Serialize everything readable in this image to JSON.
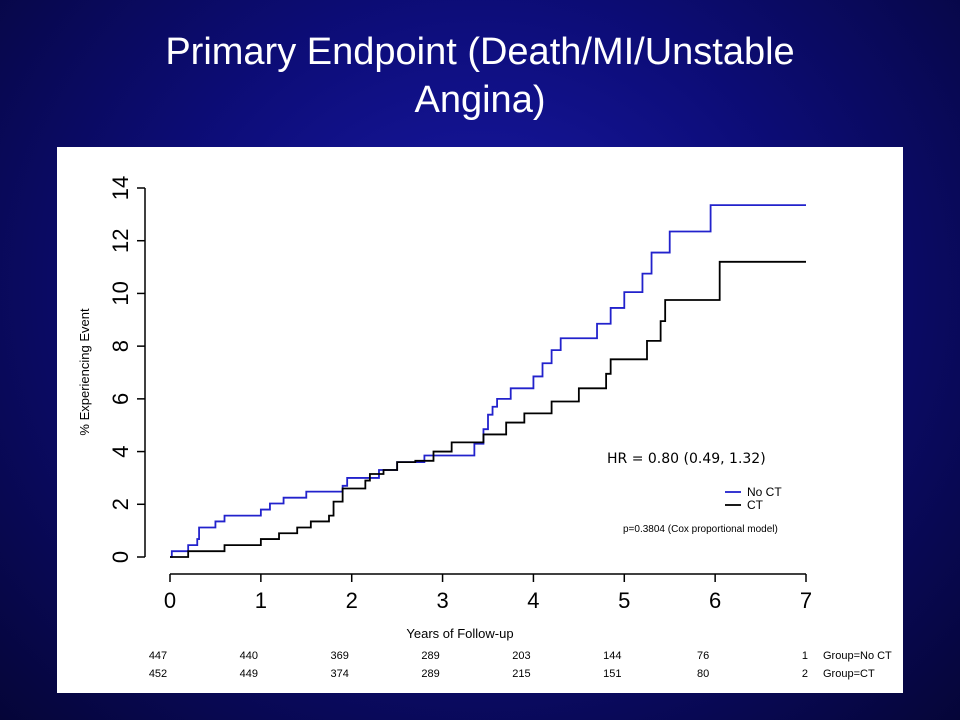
{
  "title_lines": [
    "Primary Endpoint (Death/MI/Unstable",
    "Angina)"
  ],
  "chart_data": {
    "type": "line",
    "step": true,
    "xlabel": "Years of Follow-up",
    "ylabel": "% Experiencing Event",
    "xlim": [
      0,
      7
    ],
    "ylim": [
      0,
      14
    ],
    "xticks": [
      0,
      1,
      2,
      3,
      4,
      5,
      6,
      7
    ],
    "yticks": [
      0,
      2,
      4,
      6,
      8,
      10,
      12,
      14
    ],
    "grid": false,
    "legend_position": "bottom-right",
    "series": [
      {
        "name": "No CT",
        "color": "#2222cc",
        "points": [
          [
            0,
            0
          ],
          [
            0.02,
            0.22
          ],
          [
            0.2,
            0.45
          ],
          [
            0.3,
            0.68
          ],
          [
            0.32,
            1.12
          ],
          [
            0.5,
            1.35
          ],
          [
            0.6,
            1.57
          ],
          [
            1.0,
            1.8
          ],
          [
            1.1,
            2.03
          ],
          [
            1.25,
            2.25
          ],
          [
            1.5,
            2.48
          ],
          [
            1.9,
            2.7
          ],
          [
            1.95,
            3.0
          ],
          [
            2.3,
            3.3
          ],
          [
            2.5,
            3.6
          ],
          [
            2.8,
            3.85
          ],
          [
            3.0,
            3.85
          ],
          [
            3.1,
            3.85
          ],
          [
            3.35,
            4.3
          ],
          [
            3.45,
            4.85
          ],
          [
            3.5,
            5.4
          ],
          [
            3.55,
            5.7
          ],
          [
            3.6,
            6.0
          ],
          [
            3.75,
            6.4
          ],
          [
            4.0,
            6.85
          ],
          [
            4.1,
            7.35
          ],
          [
            4.2,
            7.85
          ],
          [
            4.3,
            8.3
          ],
          [
            4.7,
            8.85
          ],
          [
            4.85,
            9.45
          ],
          [
            5.0,
            10.05
          ],
          [
            5.2,
            10.75
          ],
          [
            5.3,
            11.55
          ],
          [
            5.5,
            12.35
          ],
          [
            5.95,
            13.35
          ],
          [
            7.0,
            13.35
          ]
        ]
      },
      {
        "name": "CT",
        "color": "#000000",
        "points": [
          [
            0,
            0
          ],
          [
            0.2,
            0.22
          ],
          [
            0.6,
            0.45
          ],
          [
            1.0,
            0.68
          ],
          [
            1.2,
            0.9
          ],
          [
            1.4,
            1.12
          ],
          [
            1.55,
            1.35
          ],
          [
            1.75,
            1.57
          ],
          [
            1.8,
            2.1
          ],
          [
            1.9,
            2.6
          ],
          [
            2.15,
            2.9
          ],
          [
            2.2,
            3.15
          ],
          [
            2.35,
            3.3
          ],
          [
            2.5,
            3.6
          ],
          [
            2.7,
            3.65
          ],
          [
            2.9,
            4.0
          ],
          [
            3.1,
            4.35
          ],
          [
            3.45,
            4.65
          ],
          [
            3.7,
            5.1
          ],
          [
            3.9,
            5.45
          ],
          [
            4.2,
            5.9
          ],
          [
            4.5,
            6.4
          ],
          [
            4.8,
            6.95
          ],
          [
            4.85,
            7.5
          ],
          [
            5.25,
            8.2
          ],
          [
            5.4,
            8.95
          ],
          [
            5.45,
            9.75
          ],
          [
            6.05,
            11.2
          ],
          [
            7.0,
            11.2
          ]
        ]
      }
    ],
    "annotation": "HR = 0.80 (0.49, 1.32)",
    "legend": [
      {
        "label": "No CT",
        "color": "#2222cc"
      },
      {
        "label": "CT",
        "color": "#000000"
      }
    ],
    "p_value_text": "p=0.3804 (Cox proportional model)",
    "risk_table": [
      {
        "group_label": "Group=No CT",
        "values": [
          "447",
          "440",
          "369",
          "289",
          "203",
          "144",
          "76",
          "1"
        ]
      },
      {
        "group_label": "Group=CT",
        "values": [
          "452",
          "449",
          "374",
          "289",
          "215",
          "151",
          "80",
          "2"
        ]
      }
    ]
  }
}
